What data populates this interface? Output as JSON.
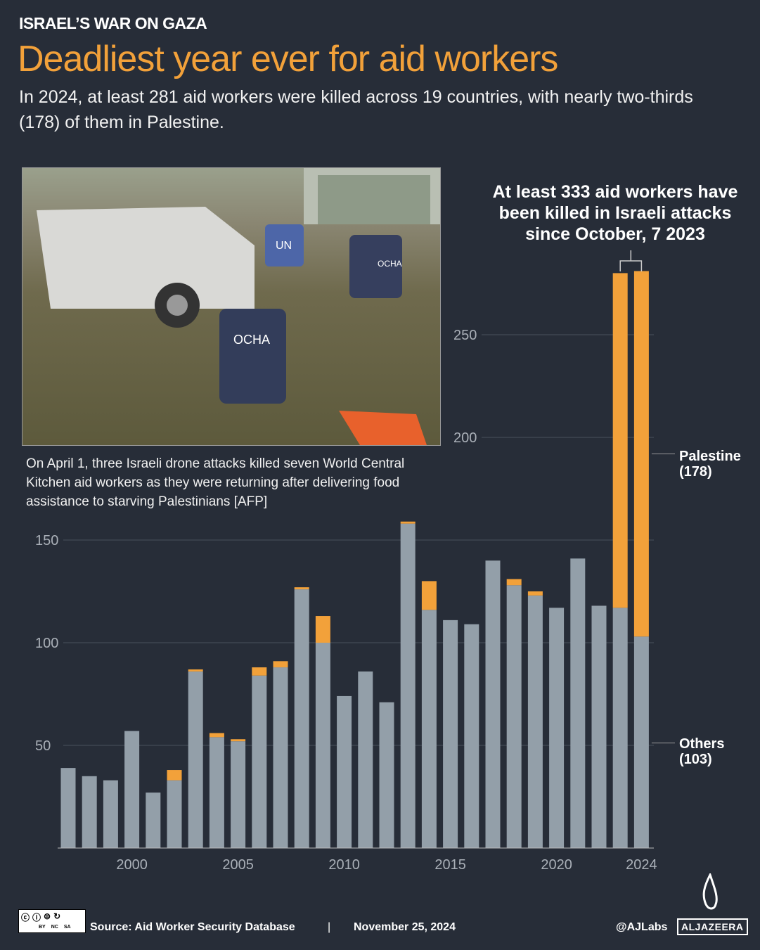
{
  "header": {
    "kicker": "ISRAEL’S WAR ON GAZA",
    "title": "Deadliest year ever for aid workers",
    "subtitle": "In 2024, at least 281 aid workers were killed across 19 countries, with nearly two-thirds (178) of them in Palestine."
  },
  "photo": {
    "caption": "On April 1, three Israeli drone attacks killed seven World Central Kitchen aid workers as they were returning after delivering food assistance to starving Palestinians [AFP]",
    "vest_labels": [
      "UN",
      "OCHA",
      "OCHA"
    ]
  },
  "colors": {
    "background": "#272d38",
    "others": "#939fa9",
    "palestine": "#f2a13a",
    "title": "#f2a13a"
  },
  "chart_data": {
    "type": "bar",
    "stacked": true,
    "title": "",
    "xlabel": "",
    "ylabel": "",
    "ylim": [
      0,
      290
    ],
    "grid": true,
    "yticks": [
      50,
      100,
      150,
      200,
      250
    ],
    "xticks": [
      2000,
      2005,
      2010,
      2015,
      2020,
      2024
    ],
    "categories": [
      1997,
      1998,
      1999,
      2000,
      2001,
      2002,
      2003,
      2004,
      2005,
      2006,
      2007,
      2008,
      2009,
      2010,
      2011,
      2012,
      2013,
      2014,
      2015,
      2016,
      2017,
      2018,
      2019,
      2020,
      2021,
      2022,
      2023,
      2024
    ],
    "series": [
      {
        "name": "Others",
        "label": "Others\n(103)",
        "values": [
          39,
          35,
          33,
          57,
          27,
          33,
          86,
          54,
          52,
          84,
          88,
          126,
          100,
          74,
          86,
          71,
          158,
          116,
          111,
          109,
          140,
          128,
          123,
          117,
          141,
          118,
          117,
          103
        ]
      },
      {
        "name": "Palestine",
        "label": "Palestine\n(178)",
        "values": [
          0,
          0,
          0,
          0,
          0,
          5,
          1,
          2,
          1,
          4,
          3,
          1,
          13,
          0,
          0,
          0,
          1,
          14,
          0,
          0,
          0,
          3,
          2,
          0,
          0,
          0,
          163,
          178
        ]
      }
    ],
    "annotation": "At least 333 aid workers have been killed in Israeli attacks since October, 7 2023"
  },
  "footer": {
    "license": [
      "BY",
      "NC",
      "SA"
    ],
    "source": "Source:  Aid Worker Security Database",
    "separator": "|",
    "date": "November 25, 2024",
    "handle": "@AJLabs",
    "brand": "ALJAZEERA"
  }
}
